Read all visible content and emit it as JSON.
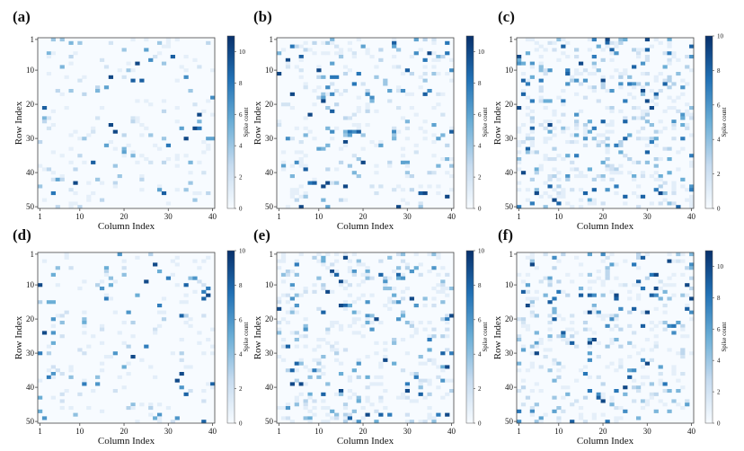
{
  "figure": {
    "colormap": {
      "low": "#f7fbff",
      "mid1": "#c6dbef",
      "mid2": "#6baed6",
      "mid3": "#2171b5",
      "high": "#08306b"
    }
  },
  "chart_data": [
    {
      "type": "heatmap",
      "panel": "(a)",
      "xlabel": "Column Index",
      "ylabel": "Row Index",
      "x_ticks": [
        1,
        10,
        20,
        30,
        40
      ],
      "y_ticks": [
        1,
        10,
        20,
        30,
        40,
        50
      ],
      "rows": 50,
      "cols": 40,
      "colorbar_label": "Spike count",
      "colorbar_ticks": [
        0,
        2,
        4,
        6,
        8,
        10
      ],
      "vmin": 0,
      "vmax": 11,
      "seed": 11,
      "density": 0.09
    },
    {
      "type": "heatmap",
      "panel": "(b)",
      "xlabel": "Column Index",
      "ylabel": "Row Index",
      "x_ticks": [
        1,
        10,
        20,
        30,
        40
      ],
      "y_ticks": [
        1,
        10,
        20,
        30,
        40,
        50
      ],
      "rows": 50,
      "cols": 40,
      "colorbar_label": "Spike count",
      "colorbar_ticks": [
        0,
        2,
        4,
        6,
        8,
        10
      ],
      "vmin": 0,
      "vmax": 11,
      "seed": 23,
      "density": 0.14
    },
    {
      "type": "heatmap",
      "panel": "(c)",
      "xlabel": "Column Index",
      "ylabel": "Row Index",
      "x_ticks": [
        1,
        10,
        20,
        30,
        40
      ],
      "y_ticks": [
        1,
        10,
        20,
        30,
        40,
        50
      ],
      "rows": 50,
      "cols": 40,
      "colorbar_label": "Spike count",
      "colorbar_ticks": [
        0,
        2,
        4,
        6,
        8,
        10
      ],
      "vmin": 0,
      "vmax": 10,
      "seed": 37,
      "density": 0.22
    },
    {
      "type": "heatmap",
      "panel": "(d)",
      "xlabel": "Column Index",
      "ylabel": "Row Index",
      "x_ticks": [
        1,
        10,
        20,
        30,
        40
      ],
      "y_ticks": [
        1,
        10,
        20,
        30,
        40,
        50
      ],
      "rows": 50,
      "cols": 40,
      "colorbar_label": "Spike count",
      "colorbar_ticks": [
        0,
        2,
        4,
        6,
        8,
        10
      ],
      "vmin": 0,
      "vmax": 10,
      "seed": 41,
      "density": 0.1
    },
    {
      "type": "heatmap",
      "panel": "(e)",
      "xlabel": "Column Index",
      "ylabel": "Row Index",
      "x_ticks": [
        1,
        10,
        20,
        30,
        40
      ],
      "y_ticks": [
        1,
        10,
        20,
        30,
        40,
        50
      ],
      "rows": 50,
      "cols": 40,
      "colorbar_label": "Spike count",
      "colorbar_ticks": [
        0,
        2,
        4,
        6,
        8,
        10
      ],
      "vmin": 0,
      "vmax": 10,
      "seed": 53,
      "density": 0.2
    },
    {
      "type": "heatmap",
      "panel": "(f)",
      "xlabel": "Column Index",
      "ylabel": "Row Index",
      "x_ticks": [
        1,
        10,
        20,
        30,
        40
      ],
      "y_ticks": [
        1,
        10,
        20,
        30,
        40,
        50
      ],
      "rows": 50,
      "cols": 40,
      "colorbar_label": "Spike count",
      "colorbar_ticks": [
        0,
        2,
        4,
        6,
        8,
        10
      ],
      "vmin": 0,
      "vmax": 11,
      "seed": 67,
      "density": 0.16
    }
  ]
}
